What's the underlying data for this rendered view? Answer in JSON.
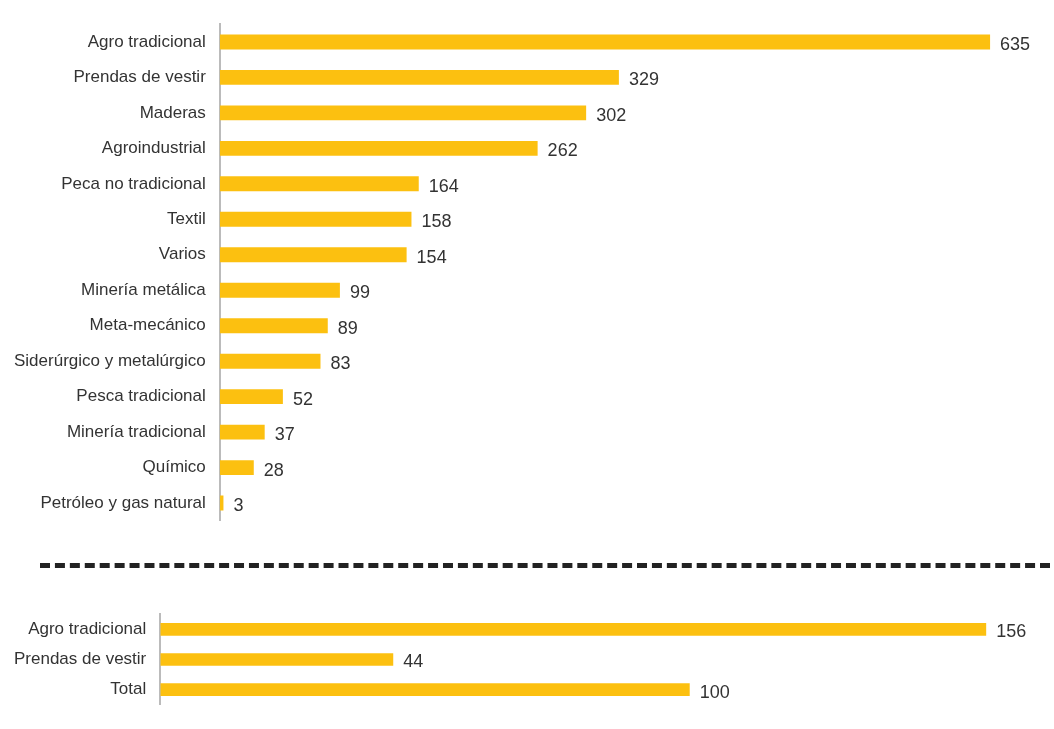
{
  "chart_data": [
    {
      "type": "bar",
      "orientation": "horizontal",
      "categories": [
        "Agro tradicional",
        "Prendas de vestir",
        "Maderas",
        "Agroindustrial",
        "Peca no tradicional",
        "Textil",
        "Varios",
        "Minería metálica",
        "Meta-mecánico",
        "Siderúrgico y metalúrgico",
        "Pesca tradicional",
        "Minería tradicional",
        "Químico",
        "Petróleo y gas natural"
      ],
      "values": [
        635,
        329,
        302,
        262,
        164,
        158,
        154,
        99,
        89,
        83,
        52,
        37,
        28,
        3
      ],
      "color": "#fcc010",
      "data_labels": true,
      "tick_labels": "y",
      "grid": false,
      "legend": false
    },
    {
      "type": "bar",
      "orientation": "horizontal",
      "categories": [
        "Agro tradicional",
        "Prendas de vestir",
        "Total"
      ],
      "values": [
        156,
        44,
        100
      ],
      "color": "#fcc010",
      "data_labels": true,
      "tick_labels": "y",
      "grid": false,
      "legend": false
    }
  ]
}
